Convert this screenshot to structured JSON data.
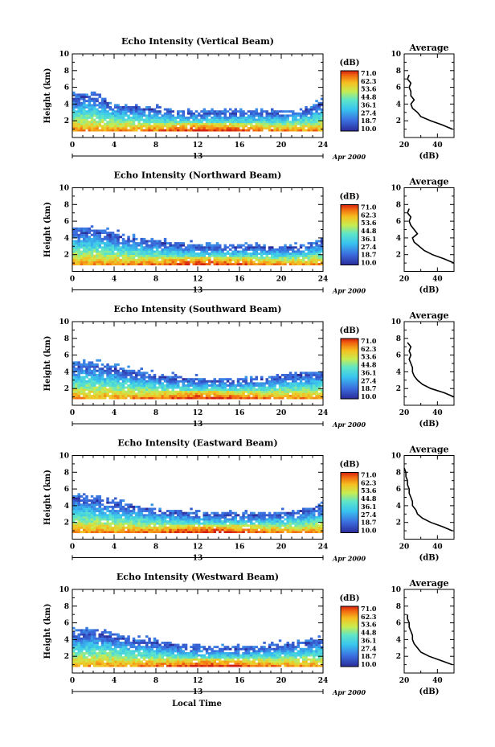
{
  "figure": {
    "x_label": "Local Time",
    "date_label": "Apr 2000",
    "day_label": "13",
    "colorbar_unit": "(dB)",
    "colorbar_levels": [
      "71.0",
      "62.3",
      "53.6",
      "44.8",
      "36.1",
      "27.4",
      "18.7",
      "10.0"
    ]
  },
  "chart_data": [
    {
      "type": "heatmap",
      "title": "Echo Intensity (Vertical Beam)",
      "xlabel": "",
      "ylabel": "Height (km)",
      "xlim": [
        0,
        24
      ],
      "ylim": [
        0,
        10
      ],
      "x_ticks": [
        0,
        4,
        8,
        12,
        16,
        20,
        24
      ],
      "y_ticks": [
        2,
        4,
        6,
        8,
        10
      ],
      "colorbar": {
        "unit": "dB",
        "range": [
          10.0,
          71.0
        ]
      },
      "echo_top_km_vs_hour": [
        [
          0,
          5.0
        ],
        [
          2,
          5.3
        ],
        [
          4,
          4.0
        ],
        [
          6,
          3.8
        ],
        [
          8,
          3.4
        ],
        [
          10,
          3.2
        ],
        [
          12,
          3.0
        ],
        [
          14,
          3.0
        ],
        [
          16,
          3.1
        ],
        [
          18,
          3.1
        ],
        [
          20,
          3.0
        ],
        [
          22,
          3.3
        ],
        [
          24,
          4.2
        ]
      ],
      "profile": {
        "title": "Average",
        "xlabel": "(dB)",
        "xlim": [
          20,
          50
        ],
        "ylim": [
          0,
          10
        ],
        "x_ticks": [
          20,
          40
        ],
        "y_ticks": [
          2,
          4,
          6,
          8,
          10
        ],
        "height_km": [
          1.0,
          1.5,
          2.0,
          2.5,
          3.0,
          3.5,
          4.0,
          4.5,
          5.0,
          5.5,
          6.0,
          6.5,
          7.0,
          7.5
        ],
        "mean_db": [
          49,
          43,
          36,
          30,
          28,
          25,
          24,
          26,
          24,
          24,
          23,
          24,
          22,
          23
        ]
      }
    },
    {
      "type": "heatmap",
      "title": "Echo Intensity (Northward Beam)",
      "xlabel": "",
      "ylabel": "Height (km)",
      "xlim": [
        0,
        24
      ],
      "ylim": [
        0,
        10
      ],
      "x_ticks": [
        0,
        4,
        8,
        12,
        16,
        20,
        24
      ],
      "y_ticks": [
        2,
        4,
        6,
        8,
        10
      ],
      "colorbar": {
        "unit": "dB",
        "range": [
          10.0,
          71.0
        ]
      },
      "echo_top_km_vs_hour": [
        [
          0,
          5.0
        ],
        [
          2,
          5.0
        ],
        [
          4,
          4.5
        ],
        [
          6,
          4.0
        ],
        [
          8,
          3.6
        ],
        [
          10,
          3.3
        ],
        [
          12,
          3.1
        ],
        [
          14,
          3.0
        ],
        [
          16,
          3.0
        ],
        [
          18,
          3.0
        ],
        [
          20,
          2.9
        ],
        [
          22,
          3.0
        ],
        [
          24,
          3.8
        ]
      ],
      "profile": {
        "title": "Average",
        "xlabel": "(dB)",
        "xlim": [
          20,
          50
        ],
        "ylim": [
          0,
          10
        ],
        "x_ticks": [
          20,
          40
        ],
        "y_ticks": [
          2,
          4,
          6,
          8,
          10
        ],
        "height_km": [
          1.0,
          1.5,
          2.0,
          2.5,
          3.0,
          3.5,
          4.0,
          4.5,
          5.0,
          5.5,
          6.0,
          6.5,
          7.0,
          7.5
        ],
        "mean_db": [
          50,
          44,
          37,
          32,
          29,
          26,
          25,
          28,
          26,
          24,
          23,
          24,
          22,
          23
        ]
      }
    },
    {
      "type": "heatmap",
      "title": "Echo Intensity (Southward Beam)",
      "xlabel": "",
      "ylabel": "Height (km)",
      "xlim": [
        0,
        24
      ],
      "ylim": [
        0,
        10
      ],
      "x_ticks": [
        0,
        4,
        8,
        12,
        16,
        20,
        24
      ],
      "y_ticks": [
        2,
        4,
        6,
        8,
        10
      ],
      "colorbar": {
        "unit": "dB",
        "range": [
          10.0,
          71.0
        ]
      },
      "echo_top_km_vs_hour": [
        [
          0,
          5.0
        ],
        [
          2,
          5.0
        ],
        [
          4,
          4.6
        ],
        [
          6,
          4.0
        ],
        [
          8,
          3.6
        ],
        [
          10,
          3.3
        ],
        [
          12,
          3.1
        ],
        [
          14,
          3.0
        ],
        [
          16,
          3.0
        ],
        [
          18,
          3.2
        ],
        [
          20,
          3.5
        ],
        [
          22,
          3.8
        ],
        [
          24,
          4.0
        ]
      ],
      "profile": {
        "title": "Average",
        "xlabel": "(dB)",
        "xlim": [
          20,
          50
        ],
        "ylim": [
          0,
          10
        ],
        "x_ticks": [
          20,
          40
        ],
        "y_ticks": [
          2,
          4,
          6,
          8,
          10
        ],
        "height_km": [
          1.0,
          1.5,
          2.0,
          2.5,
          3.0,
          3.5,
          4.0,
          4.5,
          5.0,
          5.5,
          6.0,
          6.5,
          7.0,
          7.5
        ],
        "mean_db": [
          50,
          44,
          36,
          31,
          28,
          26,
          25,
          25,
          24,
          23,
          24,
          23,
          24,
          22
        ]
      }
    },
    {
      "type": "heatmap",
      "title": "Echo Intensity (Eastward Beam)",
      "xlabel": "",
      "ylabel": "Height (km)",
      "xlim": [
        0,
        24
      ],
      "ylim": [
        0,
        10
      ],
      "x_ticks": [
        0,
        4,
        8,
        12,
        16,
        20,
        24
      ],
      "y_ticks": [
        2,
        4,
        6,
        8,
        10
      ],
      "colorbar": {
        "unit": "dB",
        "range": [
          10.0,
          71.0
        ]
      },
      "echo_top_km_vs_hour": [
        [
          0,
          5.2
        ],
        [
          2,
          5.0
        ],
        [
          4,
          4.4
        ],
        [
          6,
          4.0
        ],
        [
          8,
          3.6
        ],
        [
          10,
          3.3
        ],
        [
          12,
          3.1
        ],
        [
          14,
          3.0
        ],
        [
          16,
          3.0
        ],
        [
          18,
          3.0
        ],
        [
          20,
          3.1
        ],
        [
          22,
          3.5
        ],
        [
          24,
          4.0
        ]
      ],
      "profile": {
        "title": "Average",
        "xlabel": "(dB)",
        "xlim": [
          20,
          50
        ],
        "ylim": [
          0,
          10
        ],
        "x_ticks": [
          20,
          40
        ],
        "y_ticks": [
          2,
          4,
          6,
          8,
          10
        ],
        "height_km": [
          1.0,
          1.5,
          2.0,
          2.5,
          3.0,
          3.5,
          4.0,
          4.5,
          5.0,
          5.5,
          6.0,
          6.5,
          7.0,
          7.5,
          8.0,
          8.5
        ],
        "mean_db": [
          49,
          43,
          36,
          31,
          28,
          27,
          25,
          25,
          24,
          23,
          23,
          22,
          22,
          21,
          21,
          20
        ]
      }
    },
    {
      "type": "heatmap",
      "title": "Echo Intensity (Westward Beam)",
      "xlabel": "Local Time",
      "ylabel": "Height (km)",
      "xlim": [
        0,
        24
      ],
      "ylim": [
        0,
        10
      ],
      "x_ticks": [
        0,
        4,
        8,
        12,
        16,
        20,
        24
      ],
      "y_ticks": [
        2,
        4,
        6,
        8,
        10
      ],
      "colorbar": {
        "unit": "dB",
        "range": [
          10.0,
          71.0
        ]
      },
      "echo_top_km_vs_hour": [
        [
          0,
          5.0
        ],
        [
          2,
          5.1
        ],
        [
          4,
          4.6
        ],
        [
          6,
          4.0
        ],
        [
          8,
          3.8
        ],
        [
          10,
          3.4
        ],
        [
          12,
          3.1
        ],
        [
          14,
          3.0
        ],
        [
          16,
          3.0
        ],
        [
          18,
          3.1
        ],
        [
          20,
          3.4
        ],
        [
          22,
          3.7
        ],
        [
          24,
          4.0
        ]
      ],
      "profile": {
        "title": "Average",
        "xlabel": "(dB)",
        "xlim": [
          20,
          50
        ],
        "ylim": [
          0,
          10
        ],
        "x_ticks": [
          20,
          40
        ],
        "y_ticks": [
          2,
          4,
          6,
          8,
          10
        ],
        "height_km": [
          1.0,
          1.5,
          2.0,
          2.5,
          3.0,
          3.5,
          4.0,
          4.5,
          5.0,
          5.5,
          6.0,
          6.5,
          7.0
        ],
        "mean_db": [
          49,
          42,
          35,
          30,
          28,
          26,
          25,
          25,
          24,
          23,
          23,
          22,
          22
        ]
      }
    }
  ]
}
